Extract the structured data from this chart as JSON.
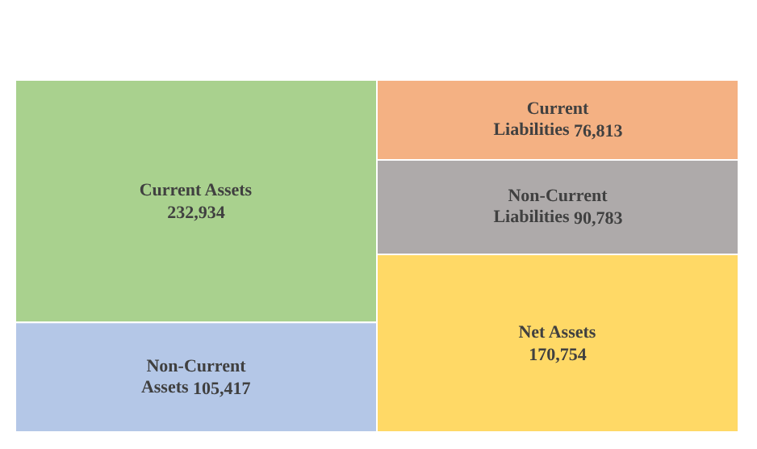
{
  "chart_data": [
    {
      "type": "other",
      "categories": [
        "Current Assets",
        "Non-Current Assets"
      ],
      "values": [
        232934,
        105417
      ],
      "value_labels": [
        "232,934",
        "105,417"
      ],
      "colors": [
        "#a9d18e",
        "#b4c7e7"
      ]
    },
    {
      "type": "other",
      "categories": [
        "Current Liabilities",
        "Non-Current Liabilities",
        "Net Assets"
      ],
      "values": [
        76813,
        90783,
        170754
      ],
      "value_labels": [
        "76,813",
        "90,783",
        "170,754"
      ],
      "colors": [
        "#f4b183",
        "#aeaaaa",
        "#ffd966"
      ]
    }
  ]
}
